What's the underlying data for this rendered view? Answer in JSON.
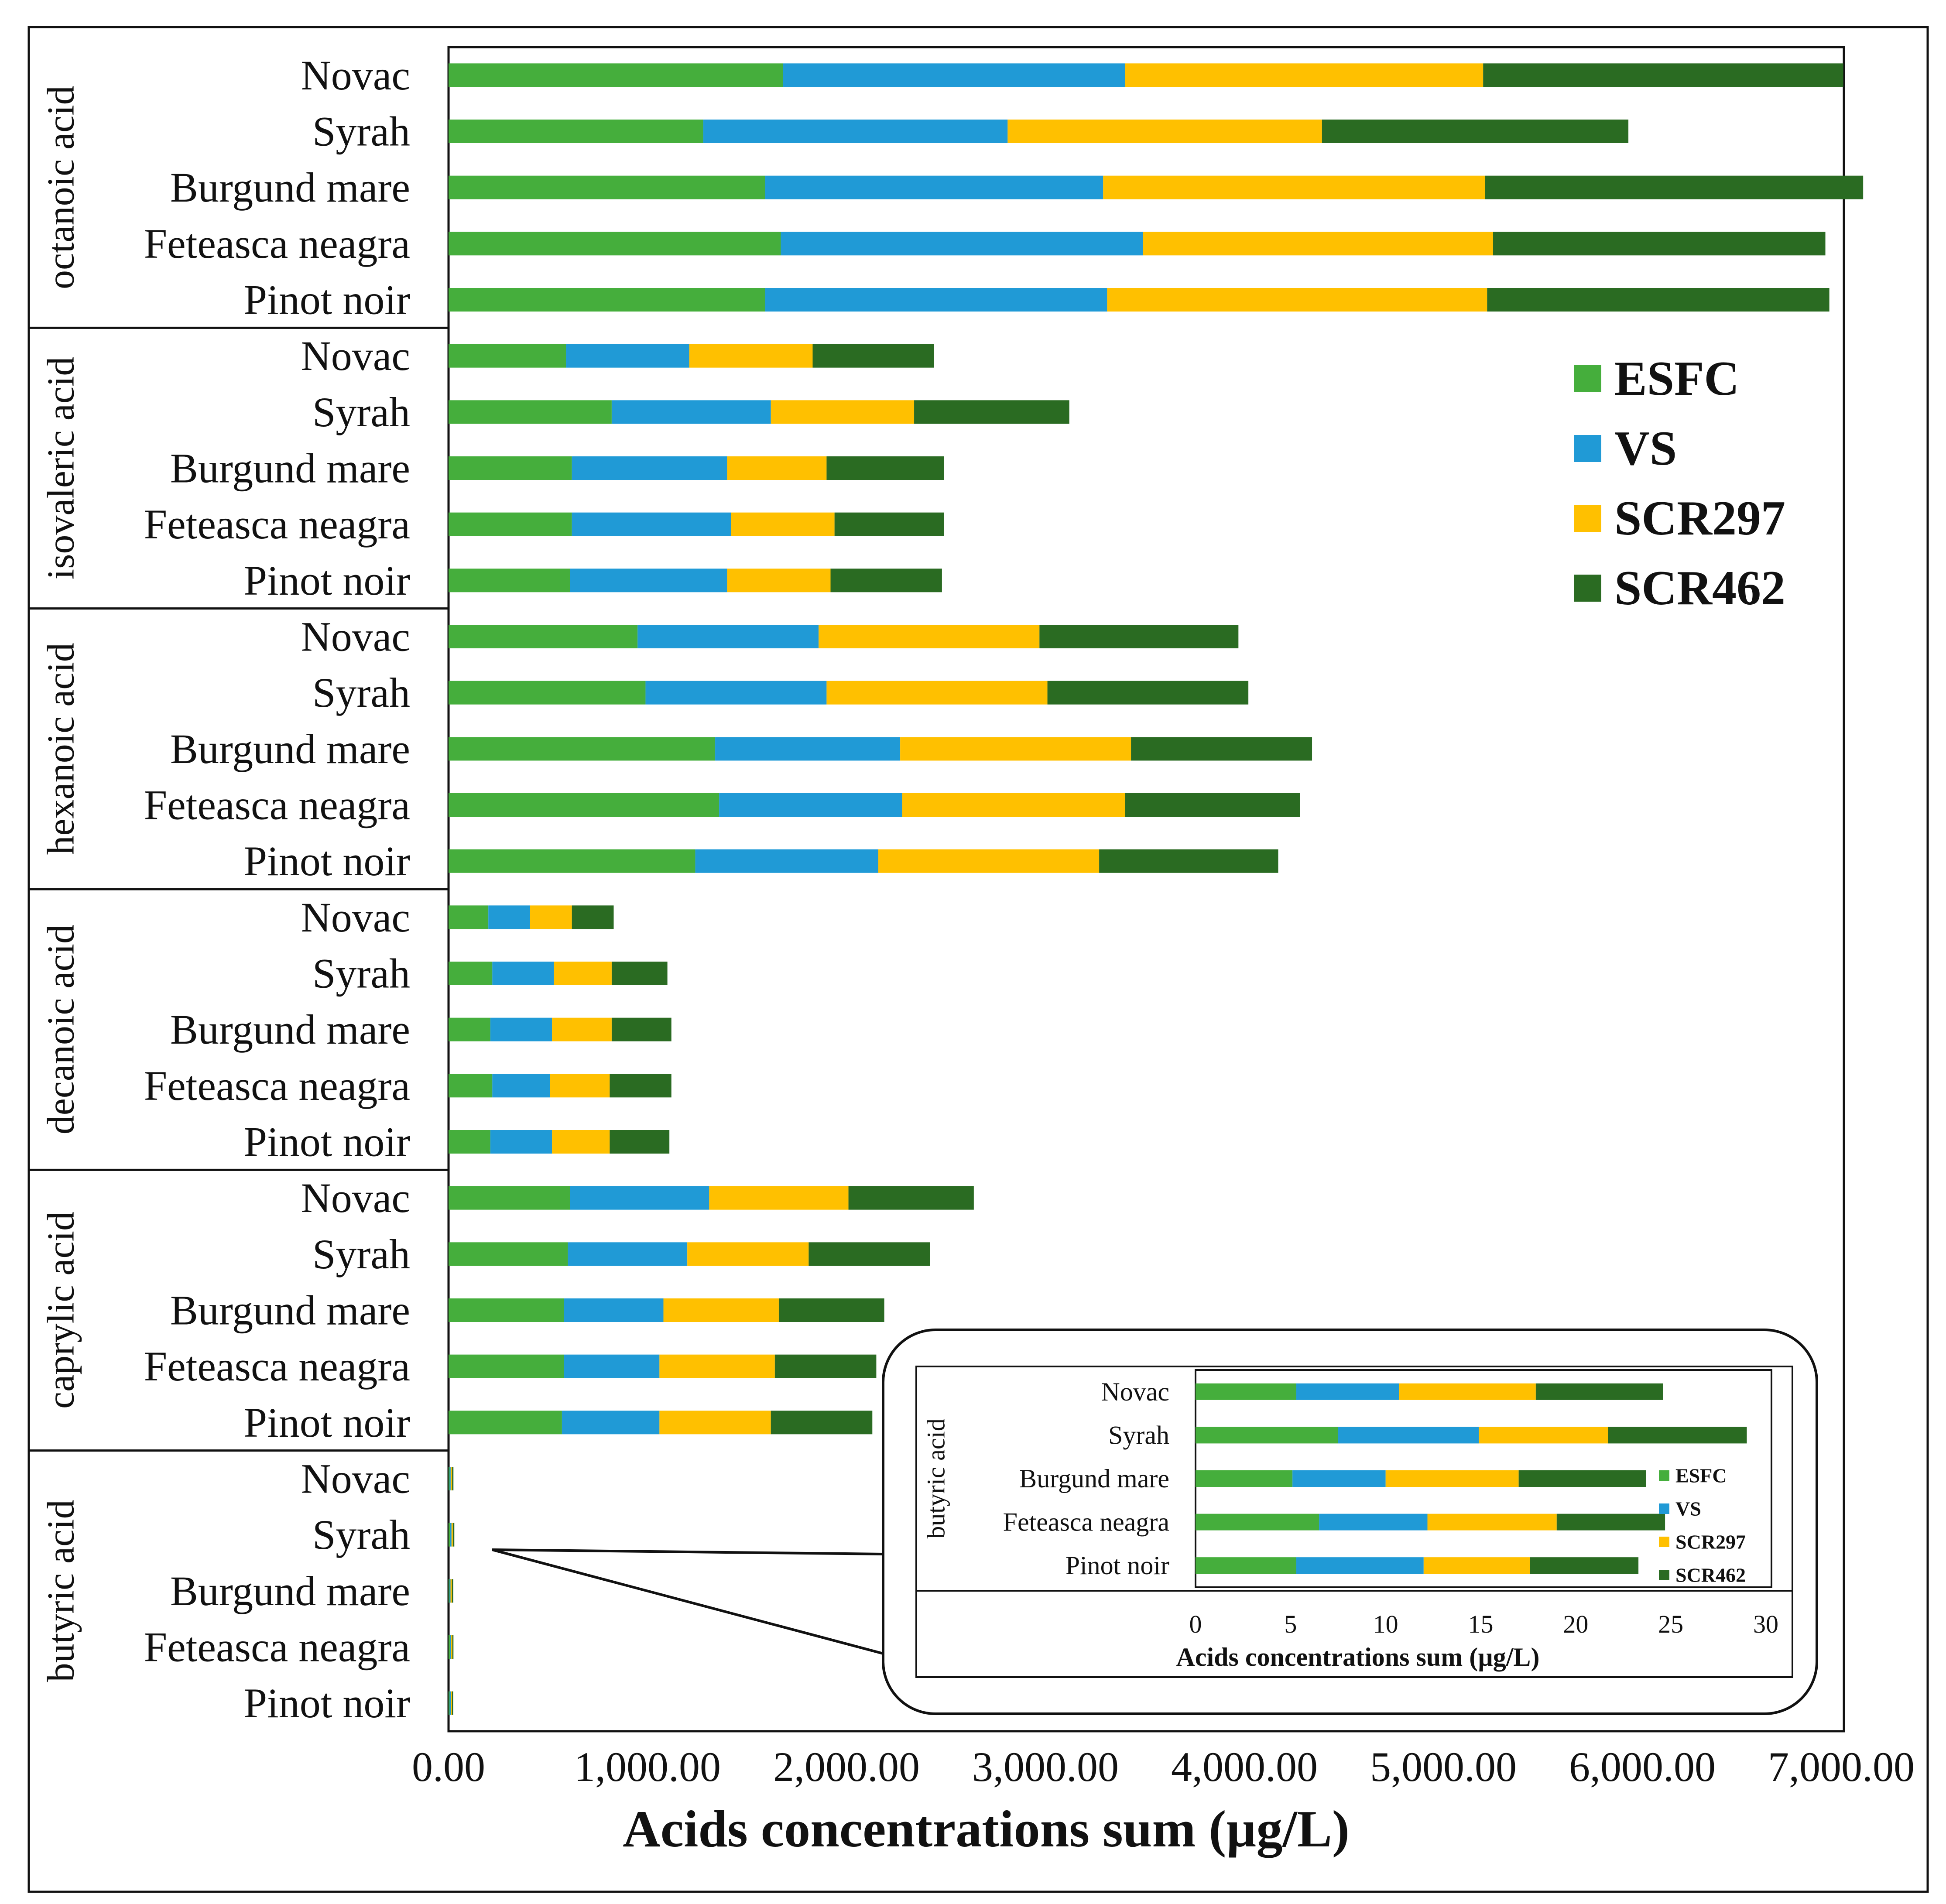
{
  "chart_data": [
    {
      "type": "bar",
      "orientation": "horizontal",
      "stacked": true,
      "xlabel": "Acids concentrations sum (µg/L)",
      "xlim": [
        0,
        7000
      ],
      "xticks": [
        "0.00",
        "1,000.00",
        "2,000.00",
        "3,000.00",
        "4,000.00",
        "5,000.00",
        "6,000.00",
        "7,000.00"
      ],
      "legend_position": "right",
      "legend": [
        "ESFC",
        "VS",
        "SCR297",
        "SCR462"
      ],
      "groups": [
        {
          "name": "octanoic acid",
          "rows": [
            {
              "label": "Novac",
              "values": [
                1680,
                1720,
                1800,
                1810
              ]
            },
            {
              "label": "Syrah",
              "values": [
                1280,
                1530,
                1580,
                1540
              ]
            },
            {
              "label": "Burgund mare",
              "values": [
                1590,
                1700,
                1920,
                1900
              ]
            },
            {
              "label": "Feteasca neagra",
              "values": [
                1670,
                1820,
                1760,
                1670
              ]
            },
            {
              "label": "Pinot noir",
              "values": [
                1590,
                1720,
                1910,
                1720
              ]
            }
          ]
        },
        {
          "name": "isovaleric acid",
          "rows": [
            {
              "label": "Novac",
              "values": [
                590,
                620,
                620,
                610
              ]
            },
            {
              "label": "Syrah",
              "values": [
                820,
                800,
                720,
                780
              ]
            },
            {
              "label": "Burgund mare",
              "values": [
                620,
                780,
                500,
                590
              ]
            },
            {
              "label": "Feteasca neagra",
              "values": [
                620,
                800,
                520,
                550
              ]
            },
            {
              "label": "Pinot noir",
              "values": [
                610,
                790,
                520,
                560
              ]
            }
          ]
        },
        {
          "name": "hexanoic acid",
          "rows": [
            {
              "label": "Novac",
              "values": [
                950,
                910,
                1110,
                1000
              ]
            },
            {
              "label": "Syrah",
              "values": [
                990,
                910,
                1110,
                1010
              ]
            },
            {
              "label": "Burgund mare",
              "values": [
                1340,
                930,
                1160,
                910
              ]
            },
            {
              "label": "Feteasca neagra",
              "values": [
                1360,
                920,
                1120,
                880
              ]
            },
            {
              "label": "Pinot noir",
              "values": [
                1240,
                920,
                1110,
                900
              ]
            }
          ]
        },
        {
          "name": "decanoic acid",
          "rows": [
            {
              "label": "Novac",
              "values": [
                200,
                210,
                210,
                210
              ]
            },
            {
              "label": "Syrah",
              "values": [
                220,
                310,
                290,
                280
              ]
            },
            {
              "label": "Burgund mare",
              "values": [
                210,
                310,
                300,
                300
              ]
            },
            {
              "label": "Feteasca neagra",
              "values": [
                220,
                290,
                300,
                310
              ]
            },
            {
              "label": "Pinot noir",
              "values": [
                210,
                310,
                290,
                300
              ]
            }
          ]
        },
        {
          "name": "caprylic acid",
          "rows": [
            {
              "label": "Novac",
              "values": [
                610,
                700,
                700,
                630
              ]
            },
            {
              "label": "Syrah",
              "values": [
                600,
                600,
                610,
                610
              ]
            },
            {
              "label": "Burgund mare",
              "values": [
                580,
                500,
                580,
                530
              ]
            },
            {
              "label": "Feteasca neagra",
              "values": [
                580,
                480,
                580,
                510
              ]
            },
            {
              "label": "Pinot noir",
              "values": [
                570,
                490,
                560,
                510
              ]
            }
          ]
        },
        {
          "name": "butyric acid",
          "rows": [
            {
              "label": "Novac",
              "values": [
                5.3,
                5.4,
                7.2,
                6.7
              ]
            },
            {
              "label": "Syrah",
              "values": [
                7.5,
                7.4,
                6.8,
                7.3
              ]
            },
            {
              "label": "Burgund mare",
              "values": [
                5.1,
                4.9,
                7.0,
                6.7
              ]
            },
            {
              "label": "Feteasca neagra",
              "values": [
                6.5,
                5.7,
                6.8,
                5.7
              ]
            },
            {
              "label": "Pinot noir",
              "values": [
                5.3,
                6.7,
                5.6,
                5.7
              ]
            }
          ]
        }
      ]
    },
    {
      "type": "bar",
      "orientation": "horizontal",
      "stacked": true,
      "role": "inset",
      "group": "butyric acid",
      "xlabel": "Acids concentrations sum (µg/L)",
      "xlim": [
        0,
        30
      ],
      "xticks": [
        "0",
        "5",
        "10",
        "15",
        "20",
        "25",
        "30"
      ],
      "legend": [
        "ESFC",
        "VS",
        "SCR297",
        "SCR462"
      ],
      "rows": [
        {
          "label": "Novac",
          "values": [
            5.3,
            5.4,
            7.2,
            6.7
          ]
        },
        {
          "label": "Syrah",
          "values": [
            7.5,
            7.4,
            6.8,
            7.3
          ]
        },
        {
          "label": "Burgund mare",
          "values": [
            5.1,
            4.9,
            7.0,
            6.7
          ]
        },
        {
          "label": "Feteasca neagra",
          "values": [
            6.5,
            5.7,
            6.8,
            5.7
          ]
        },
        {
          "label": "Pinot noir",
          "values": [
            5.3,
            6.7,
            5.6,
            5.7
          ]
        }
      ]
    }
  ],
  "colors": {
    "ESFC": "#45AE3C",
    "VS": "#209AD6",
    "SCR297": "#FFC000",
    "SCR462": "#2A6B22"
  }
}
